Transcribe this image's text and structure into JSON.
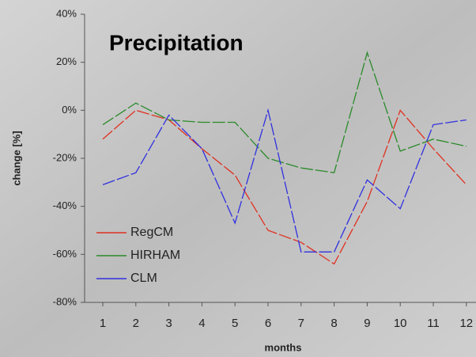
{
  "chart_data": {
    "type": "line",
    "title": "Precipitation",
    "x_label": "months",
    "y_label": "change [%]",
    "categories": [
      "1",
      "2",
      "3",
      "4",
      "5",
      "6",
      "7",
      "8",
      "9",
      "10",
      "11",
      "12"
    ],
    "series": [
      {
        "name": "RegCM",
        "color": "#e03020",
        "values": [
          -12,
          0,
          -4,
          -16,
          -27,
          -50,
          -55,
          -64,
          -38,
          0,
          -16,
          -31
        ]
      },
      {
        "name": "HIRHAM",
        "color": "#2a8a2a",
        "values": [
          -6,
          3,
          -4,
          -5,
          -5,
          -20,
          -24,
          -26,
          24,
          -17,
          -12,
          -15
        ]
      },
      {
        "name": "CLM",
        "color": "#3030e0",
        "values": [
          -31,
          -26,
          -2,
          -16,
          -47,
          0,
          -59,
          -59,
          -29,
          -41,
          -6,
          -4
        ]
      }
    ],
    "ylim": [
      -80,
      40
    ],
    "yticks": [
      {
        "value": -80,
        "label": "-80%"
      },
      {
        "value": -60,
        "label": "-60%"
      },
      {
        "value": -40,
        "label": "-40%"
      },
      {
        "value": -20,
        "label": "-20%"
      },
      {
        "value": 0,
        "label": "0%"
      },
      {
        "value": 20,
        "label": "20%"
      },
      {
        "value": 40,
        "label": "40%"
      }
    ],
    "legend": "lower left"
  }
}
